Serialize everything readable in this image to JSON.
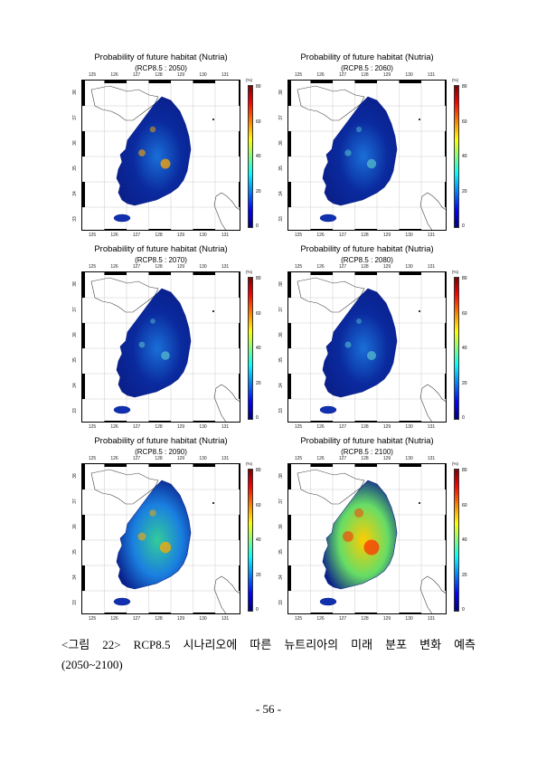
{
  "figure": {
    "panels": [
      {
        "title": "Probability of future habitat (Nutria)",
        "subtitle": "(RCP8.5 : 2050)",
        "level": 0.25
      },
      {
        "title": "Probability of future habitat (Nutria)",
        "subtitle": "(RCP8.5 : 2060)",
        "level": 0.22
      },
      {
        "title": "Probability of future habitat (Nutria)",
        "subtitle": "(RCP8.5 : 2070)",
        "level": 0.18
      },
      {
        "title": "Probability of future habitat (Nutria)",
        "subtitle": "(RCP8.5 : 2080)",
        "level": 0.2
      },
      {
        "title": "Probability of future habitat (Nutria)",
        "subtitle": "(RCP8.5 : 2090)",
        "level": 0.32
      },
      {
        "title": "Probability of future habitat (Nutria)",
        "subtitle": "(RCP8.5 : 2100)",
        "level": 0.55
      }
    ],
    "lon_ticks": [
      "125",
      "126",
      "127",
      "128",
      "129",
      "130",
      "131"
    ],
    "lat_ticks": [
      "38",
      "37",
      "36",
      "35",
      "34",
      "33"
    ],
    "colorbar": {
      "unit": "(%)",
      "ticks": [
        "80",
        "60",
        "40",
        "20",
        "0"
      ],
      "colors": [
        "#00007f",
        "#0000ff",
        "#007fff",
        "#00ffff",
        "#7fff7f",
        "#ffff00",
        "#ff7f00",
        "#ff0000",
        "#7f0000"
      ]
    }
  },
  "caption": {
    "line1": "<그림 22> RCP8.5 시나리오에 따른 뉴트리아의 미래 분포 변화 예측",
    "line2": "(2050~2100)"
  },
  "page_number": "- 56 -"
}
